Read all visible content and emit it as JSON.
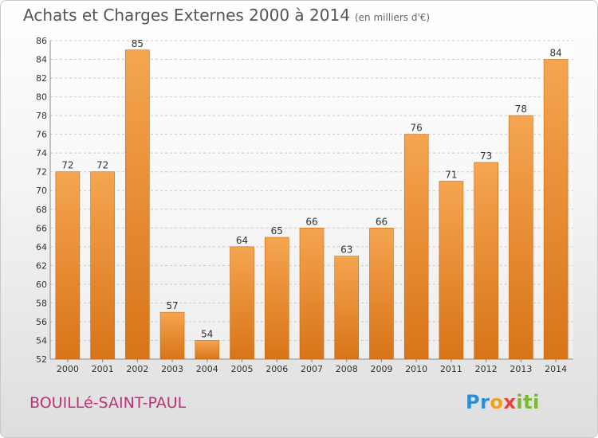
{
  "header": {
    "title": "Achats et Charges Externes 2000 à 2014",
    "unit": "(en milliers d'€)"
  },
  "footer": {
    "commune": "BOUILLé-SAINT-PAUL",
    "logo": [
      "Pr",
      "o",
      "x",
      "iti"
    ]
  },
  "colors": {
    "bar_top": "#f5a550",
    "bar_bottom": "#d87418",
    "bar_edge": "#c96a14",
    "grid": "#c9c9c9",
    "axis_text": "#333333"
  },
  "chart_data": {
    "type": "bar",
    "title": "Achats et Charges Externes 2000 à 2014",
    "subtitle": "(en milliers d'€)",
    "categories": [
      "2000",
      "2001",
      "2002",
      "2003",
      "2004",
      "2005",
      "2006",
      "2007",
      "2008",
      "2009",
      "2010",
      "2011",
      "2012",
      "2013",
      "2014"
    ],
    "values": [
      72,
      72,
      85,
      57,
      54,
      64,
      65,
      66,
      63,
      66,
      76,
      71,
      73,
      78,
      84
    ],
    "ylim": [
      52,
      86
    ],
    "yticks": [
      52,
      54,
      56,
      58,
      60,
      62,
      64,
      66,
      68,
      70,
      72,
      74,
      76,
      78,
      80,
      82,
      84,
      86
    ],
    "grid": true,
    "data_labels": true,
    "legend": "none"
  }
}
